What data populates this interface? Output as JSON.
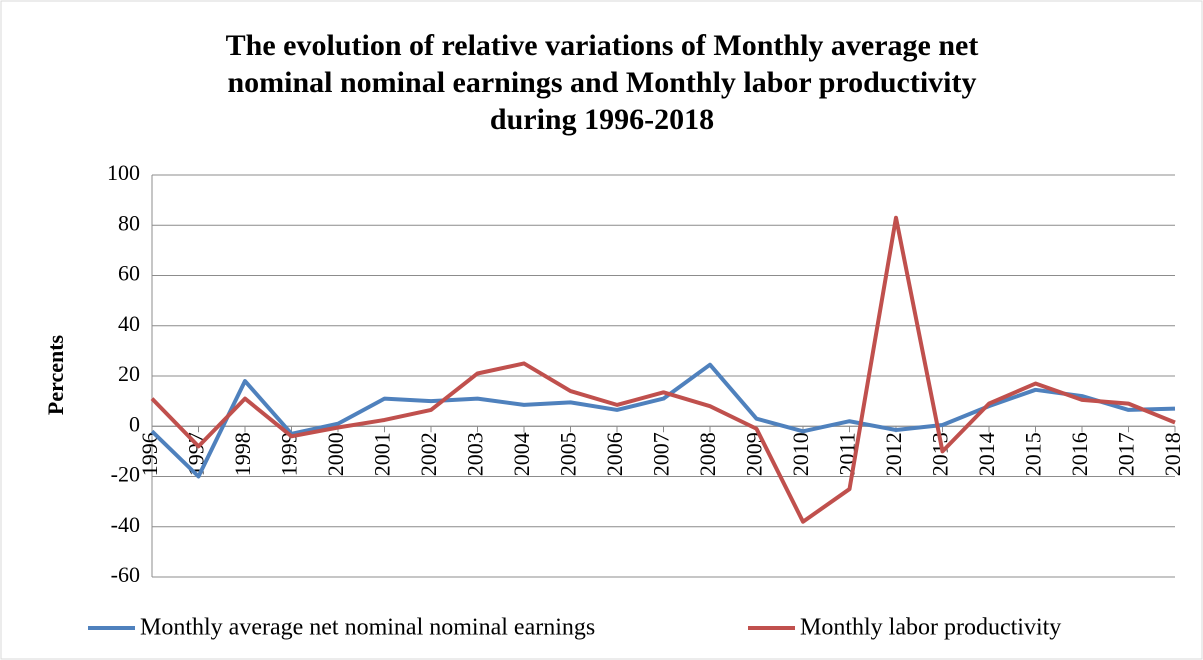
{
  "chart_data": {
    "type": "line",
    "title": [
      "The evolution of relative variations of Monthly average net",
      "nominal nominal earnings and Monthly labor productivity",
      "during 1996-2018"
    ],
    "y_label": "Percents",
    "categories": [
      "1996",
      "1997",
      "1998",
      "1999",
      "2000",
      "2001",
      "2002",
      "2003",
      "2004",
      "2005",
      "2006",
      "2007",
      "2008",
      "2009",
      "2010",
      "2011",
      "2012",
      "2013",
      "2014",
      "2015",
      "2016",
      "2017",
      "2018"
    ],
    "series": [
      {
        "name": "Monthly average net nominal nominal earnings",
        "color": "#4f81bd",
        "values": [
          -2,
          -20,
          18,
          -3,
          1,
          11,
          10,
          11,
          8.5,
          9.5,
          6.5,
          11,
          24.5,
          3,
          -2,
          2,
          -1.5,
          0.5,
          8,
          14.5,
          12,
          6.5,
          7
        ]
      },
      {
        "name": "Monthly labor productivity",
        "color": "#c0504d",
        "values": [
          11,
          -8,
          11,
          -4,
          -0.5,
          2.5,
          6.5,
          21,
          25,
          14,
          8.5,
          13.5,
          8,
          -1,
          -38,
          -25,
          83,
          -10,
          9,
          17,
          10.5,
          9,
          1.5
        ]
      }
    ],
    "ylim": [
      -60,
      100
    ],
    "yticks": [
      -60,
      -40,
      -20,
      0,
      20,
      40,
      60,
      80,
      100
    ],
    "grid": true,
    "legend": "bottom"
  }
}
